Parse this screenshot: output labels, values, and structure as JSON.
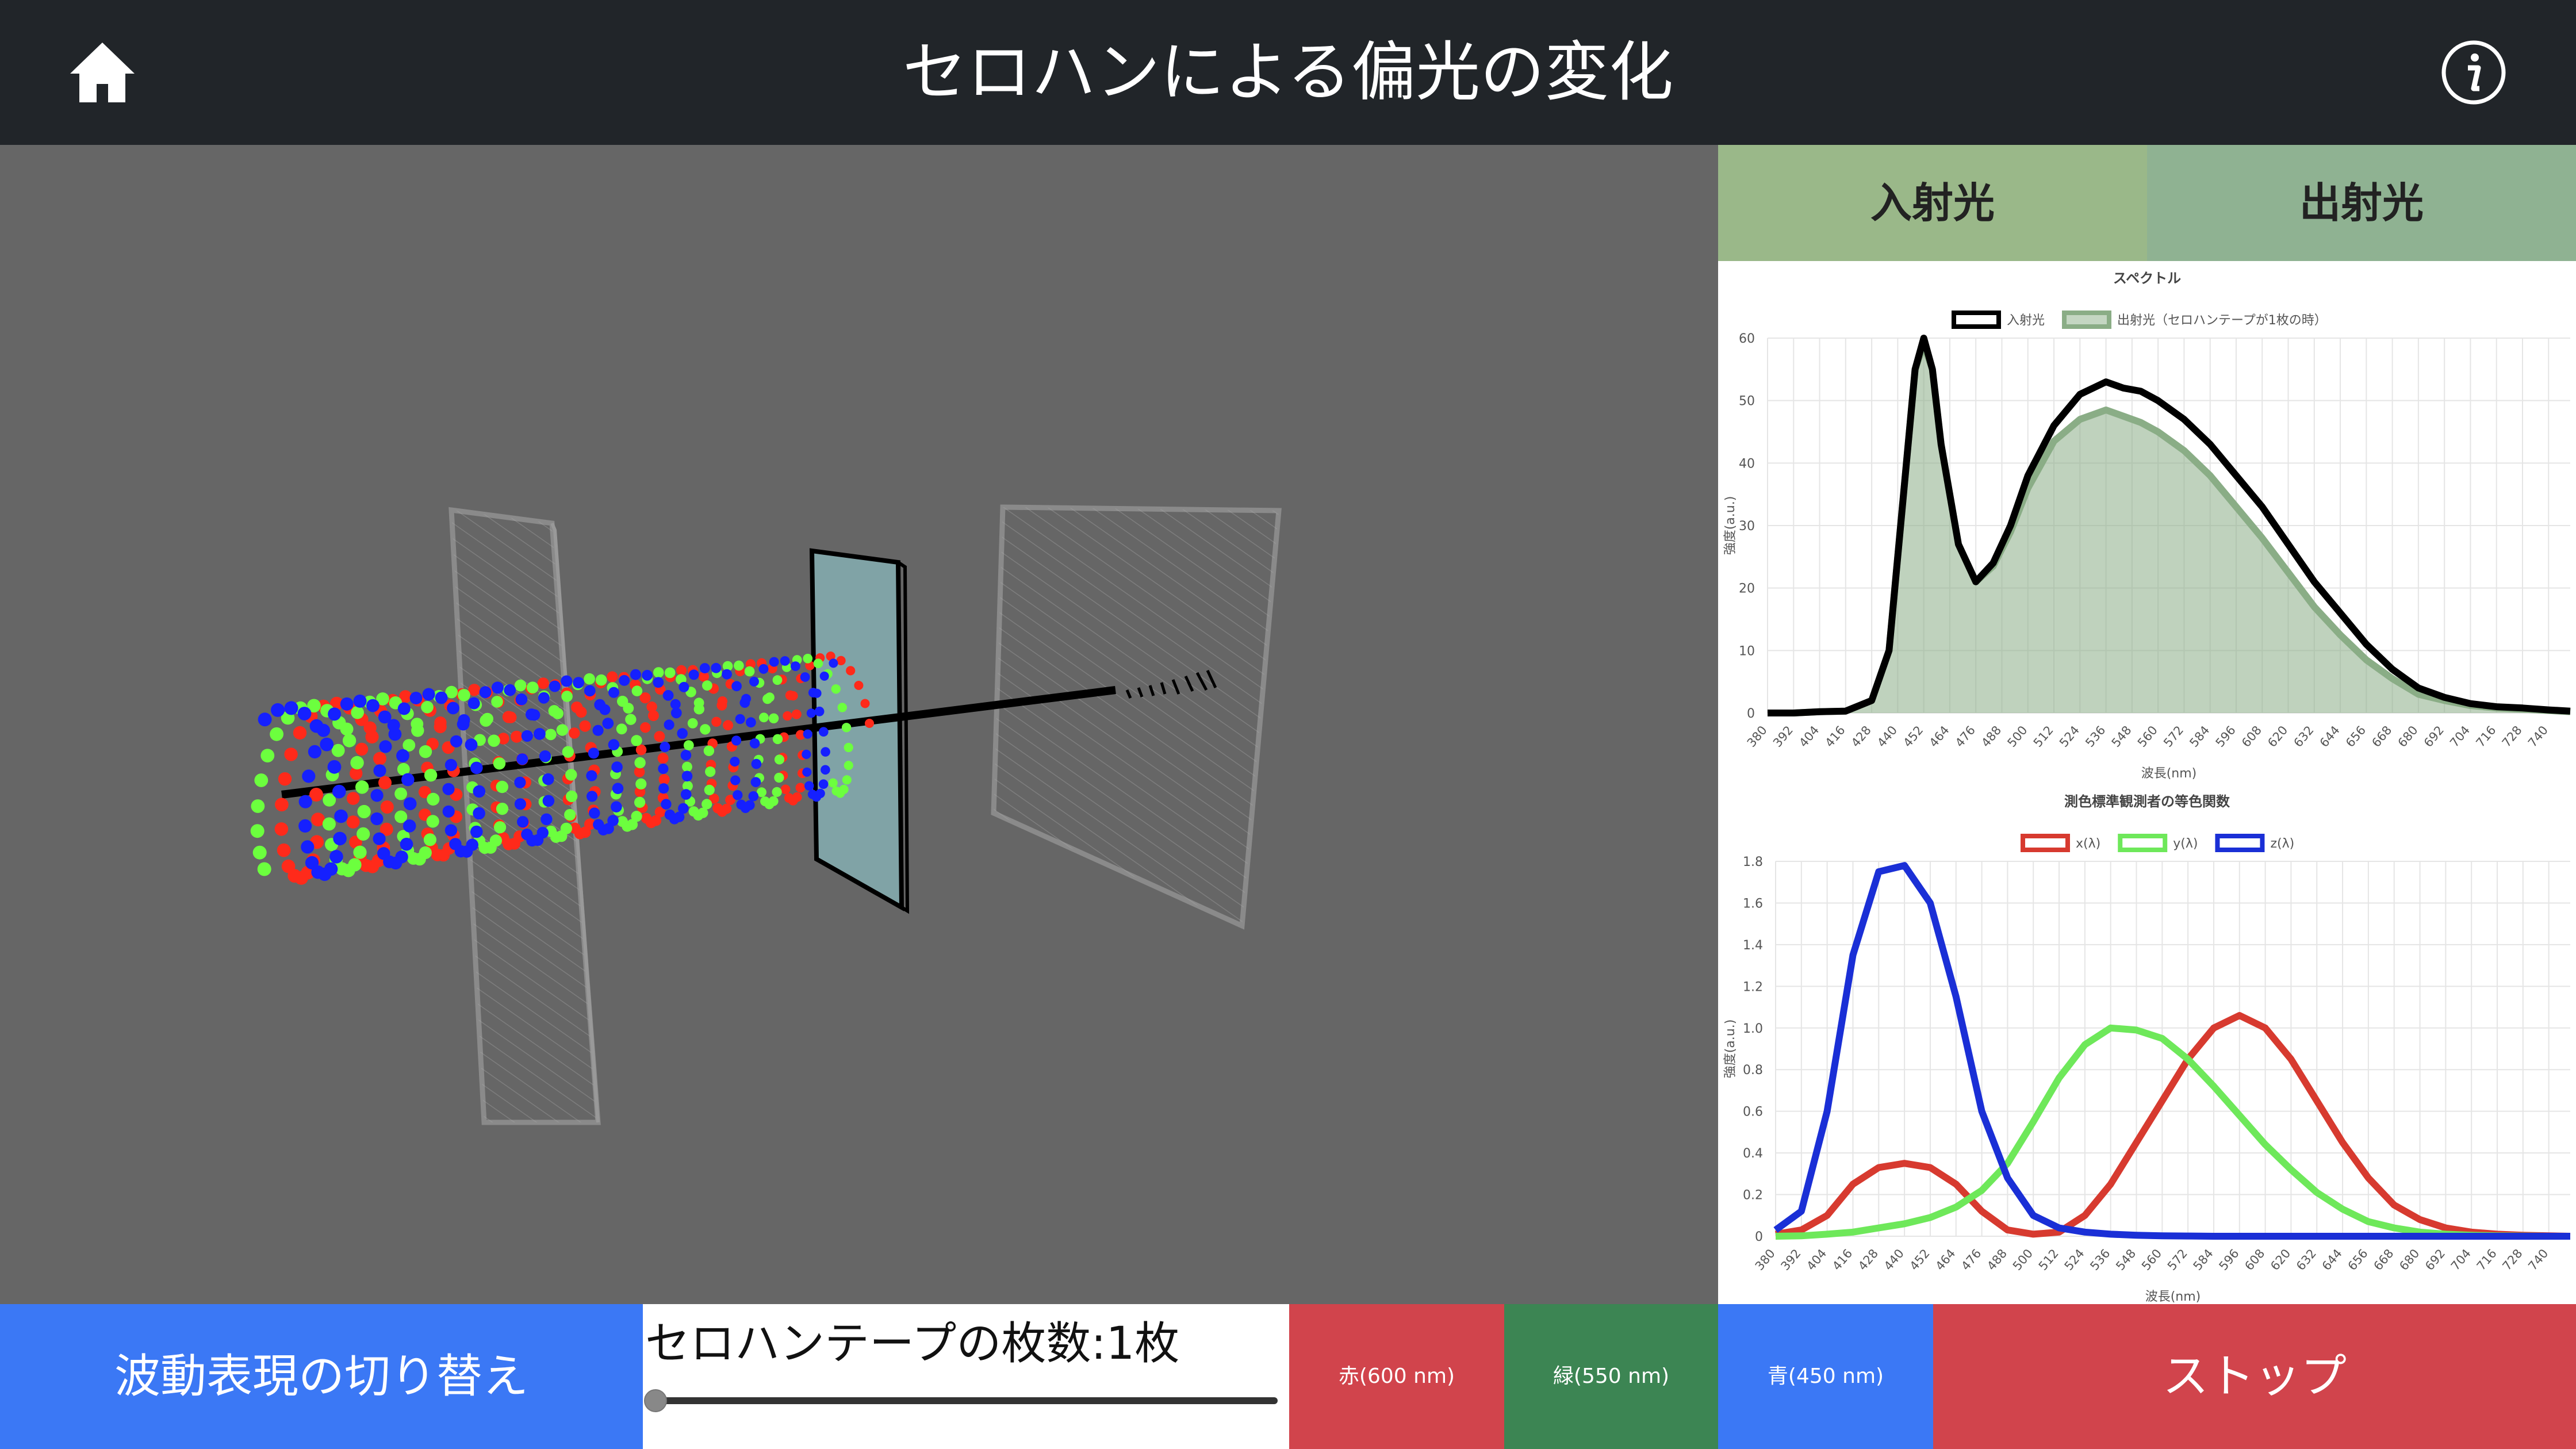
{
  "header": {
    "title": "セロハンによる偏光の変化",
    "home_icon": "home-icon",
    "info_icon": "info-icon"
  },
  "side_tabs": {
    "incident": "入射光",
    "outgoing": "出射光"
  },
  "colors": {
    "header_bg": "#212529",
    "viewport_bg": "#666666",
    "tab_green": "#9ab889",
    "btn_blue": "#3b78f5",
    "btn_red": "#d1444c",
    "btn_green": "#3c8553"
  },
  "controls": {
    "wave_toggle": "波動表現の切り替え",
    "slider_label": "セロハンテープの枚数:1枚",
    "tape_count": 1,
    "red": "赤(600 nm)",
    "green": "緑(550 nm)",
    "blue": "青(450 nm)",
    "stop": "ストップ"
  },
  "chart_data": [
    {
      "type": "area",
      "title": "スペクトル",
      "xlabel": "波長(nm)",
      "ylabel": "強度(a.u.)",
      "ylim": [
        0,
        60
      ],
      "yticks": [
        "0",
        "10",
        "20",
        "30",
        "40",
        "50",
        "60"
      ],
      "xticks": [
        "380",
        "392",
        "404",
        "416",
        "428",
        "440",
        "452",
        "464",
        "476",
        "488",
        "500",
        "512",
        "524",
        "536",
        "548",
        "560",
        "572",
        "584",
        "596",
        "608",
        "620",
        "632",
        "644",
        "656",
        "668",
        "680",
        "692",
        "704",
        "716",
        "728",
        "740"
      ],
      "x": [
        380,
        392,
        404,
        416,
        428,
        436,
        444,
        448,
        452,
        456,
        460,
        468,
        476,
        484,
        492,
        500,
        512,
        524,
        536,
        544,
        552,
        560,
        572,
        584,
        596,
        608,
        620,
        632,
        644,
        656,
        668,
        680,
        692,
        704,
        716,
        728,
        740,
        750
      ],
      "series": [
        {
          "name": "入射光",
          "color": "#000000",
          "values": [
            0,
            0,
            0.2,
            0.3,
            2,
            10,
            40,
            55,
            60,
            55,
            43,
            27,
            21,
            24,
            30,
            38,
            46,
            51,
            53,
            52,
            51.5,
            50,
            47,
            43,
            38,
            33,
            27,
            21,
            16,
            11,
            7,
            4,
            2.5,
            1.5,
            1,
            0.8,
            0.5,
            0.3
          ]
        },
        {
          "name": "出射光（セロハンテープが1枚の時）",
          "color": "#8aad86",
          "values": [
            0,
            0,
            0.2,
            0.3,
            2,
            10,
            40,
            55,
            59,
            55,
            43,
            27,
            21,
            23.5,
            29,
            36,
            43.5,
            47,
            48.5,
            47.5,
            46.5,
            45,
            42,
            38,
            33,
            28,
            22.5,
            17,
            12.5,
            8.5,
            5.5,
            3,
            2,
            1.2,
            0.8,
            0.6,
            0.4,
            0.2
          ]
        }
      ],
      "legend": "top"
    },
    {
      "type": "line",
      "title": "測色標準観測者の等色関数",
      "xlabel": "波長(nm)",
      "ylabel": "強度(a.u.)",
      "ylim": [
        0,
        1.8
      ],
      "yticks": [
        "0",
        "0.2",
        "0.4",
        "0.6",
        "0.8",
        "1.0",
        "1.2",
        "1.4",
        "1.6",
        "1.8"
      ],
      "xticks": [
        "380",
        "392",
        "404",
        "416",
        "428",
        "440",
        "452",
        "464",
        "476",
        "488",
        "500",
        "512",
        "524",
        "536",
        "548",
        "560",
        "572",
        "584",
        "596",
        "608",
        "620",
        "632",
        "644",
        "656",
        "668",
        "680",
        "692",
        "704",
        "716",
        "728",
        "740"
      ],
      "x": [
        380,
        392,
        404,
        416,
        428,
        440,
        452,
        464,
        476,
        488,
        500,
        512,
        524,
        536,
        548,
        560,
        572,
        584,
        596,
        608,
        620,
        632,
        644,
        656,
        668,
        680,
        692,
        704,
        716,
        728,
        740,
        750
      ],
      "series": [
        {
          "name": "x(λ)",
          "color": "#d73a2f",
          "values": [
            0.01,
            0.03,
            0.1,
            0.25,
            0.33,
            0.35,
            0.33,
            0.25,
            0.12,
            0.03,
            0.01,
            0.02,
            0.1,
            0.25,
            0.45,
            0.65,
            0.85,
            1.0,
            1.06,
            1.0,
            0.85,
            0.65,
            0.45,
            0.28,
            0.15,
            0.08,
            0.04,
            0.02,
            0.01,
            0.005,
            0.002,
            0
          ]
        },
        {
          "name": "y(λ)",
          "color": "#6ee85a",
          "values": [
            0,
            0.002,
            0.01,
            0.02,
            0.04,
            0.06,
            0.09,
            0.14,
            0.22,
            0.35,
            0.55,
            0.76,
            0.92,
            1.0,
            0.99,
            0.95,
            0.85,
            0.72,
            0.58,
            0.44,
            0.32,
            0.21,
            0.13,
            0.07,
            0.04,
            0.02,
            0.01,
            0.005,
            0.002,
            0.001,
            0,
            0
          ]
        },
        {
          "name": "z(λ)",
          "color": "#1a2fd6",
          "values": [
            0.03,
            0.12,
            0.6,
            1.35,
            1.75,
            1.78,
            1.6,
            1.15,
            0.6,
            0.28,
            0.1,
            0.04,
            0.02,
            0.01,
            0.005,
            0.002,
            0.001,
            0,
            0,
            0,
            0,
            0,
            0,
            0,
            0,
            0,
            0,
            0,
            0,
            0,
            0,
            0
          ]
        }
      ],
      "legend": "top"
    }
  ]
}
